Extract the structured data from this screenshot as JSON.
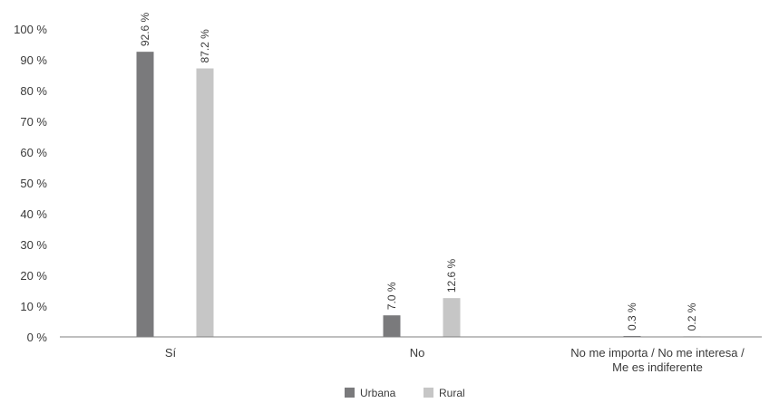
{
  "chart_data": {
    "type": "bar",
    "categories": [
      "Sí",
      "No",
      "No me importa / No me interesa / Me es indiferente"
    ],
    "category_label_lines": [
      [
        "Sí"
      ],
      [
        "No"
      ],
      [
        "No me importa / No me interesa /",
        "Me es indiferente"
      ]
    ],
    "series": [
      {
        "name": "Urbana",
        "values": [
          92.6,
          7.0,
          0.3
        ],
        "labels": [
          "92.6 %",
          "7.0 %",
          "0.3 %"
        ],
        "color": "#7a7a7c"
      },
      {
        "name": "Rural",
        "values": [
          87.2,
          12.6,
          0.2
        ],
        "labels": [
          "87.2 %",
          "12.6 %",
          "0.2 %"
        ],
        "color": "#c6c6c6"
      }
    ],
    "y_ticks": [
      "0 %",
      "10 %",
      "20 %",
      "30 %",
      "40 %",
      "50 %",
      "60 %",
      "70 %",
      "80 %",
      "90 %",
      "100 %"
    ],
    "ylim": [
      0,
      100
    ],
    "grid": false,
    "legend_position": "bottom-center",
    "title": "",
    "xlabel": "",
    "ylabel": ""
  }
}
